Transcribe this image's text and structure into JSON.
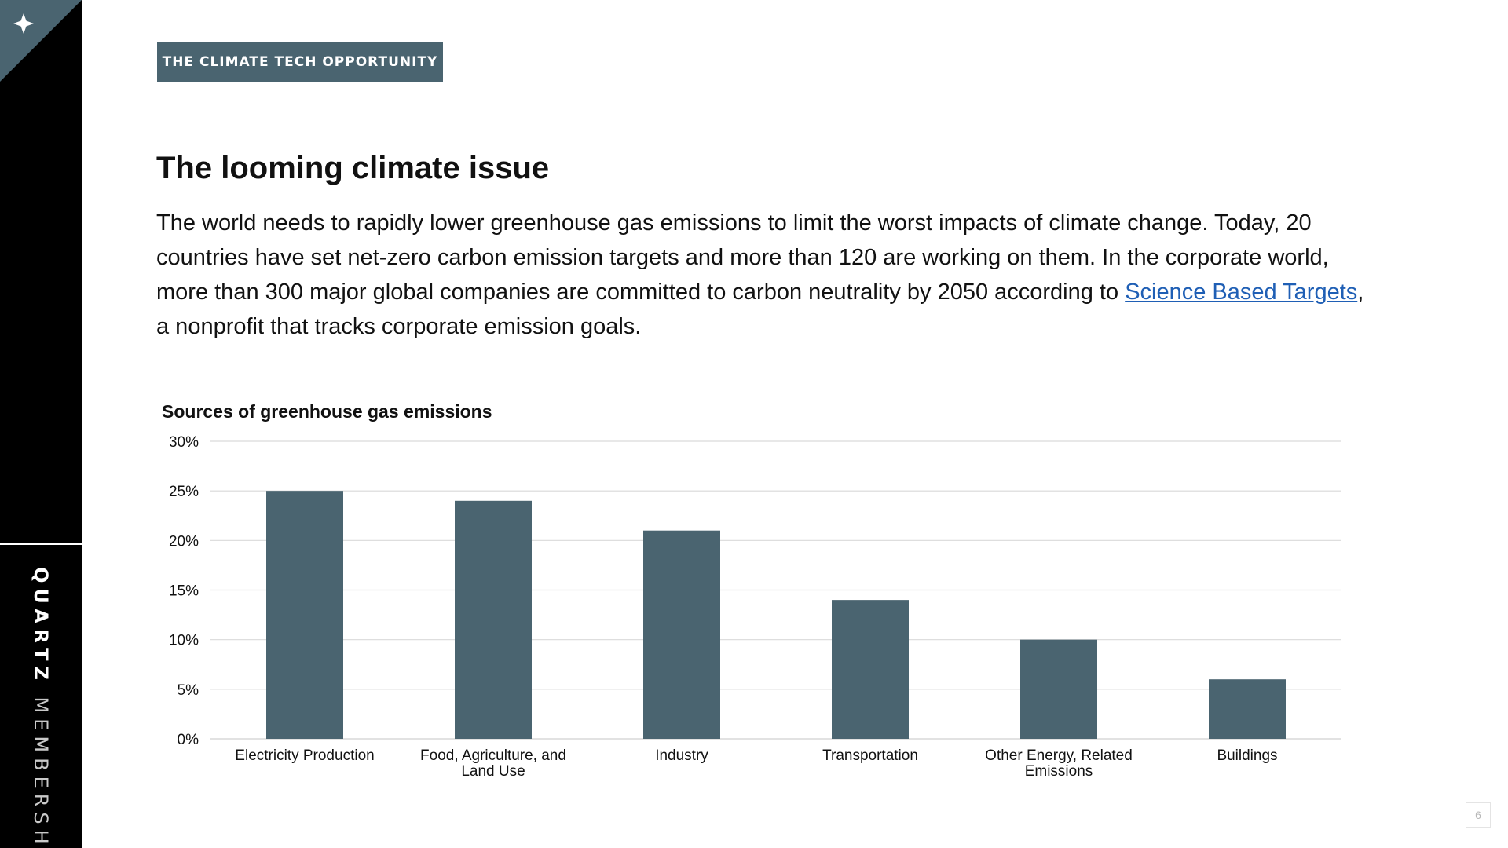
{
  "sidebar": {
    "brand_primary": "QUARTZ",
    "brand_secondary": "MEMBERSHIP",
    "logo_icon": "star-icon",
    "background_color": "#000000",
    "accent_color": "#4a6470"
  },
  "header": {
    "tag": "THE CLIMATE TECH OPPORTUNITY"
  },
  "main": {
    "title": "The looming climate issue",
    "paragraph_before_link": "The world needs to rapidly lower greenhouse gas emissions to limit the worst impacts of climate change. Today, 20 countries have set net-zero carbon emission targets and more than 120 are working on them. In the corporate world, more than 300 major global companies are committed to carbon neutrality by 2050 according to ",
    "link_text": "Science Based Targets",
    "paragraph_after_link": ", a nonprofit that tracks corporate emission goals."
  },
  "chart_data": {
    "type": "bar",
    "title": "Sources of greenhouse gas emissions",
    "xlabel": "",
    "ylabel": "",
    "categories": [
      "Electricity Production",
      "Food, Agriculture, and Land Use",
      "Industry",
      "Transportation",
      "Other Energy, Related Emissions",
      "Buildings"
    ],
    "category_label_lines": [
      [
        "Electricity Production"
      ],
      [
        "Food, Agriculture, and",
        "Land Use"
      ],
      [
        "Industry"
      ],
      [
        "Transportation"
      ],
      [
        "Other Energy, Related",
        "Emissions"
      ],
      [
        "Buildings"
      ]
    ],
    "values": [
      25,
      24,
      21,
      14,
      10,
      6
    ],
    "ylim": [
      0,
      30
    ],
    "y_ticks": [
      0,
      5,
      10,
      15,
      20,
      25,
      30
    ],
    "y_tick_labels": [
      "0%",
      "5%",
      "10%",
      "15%",
      "20%",
      "25%",
      "30%"
    ],
    "grid": true,
    "bar_color": "#4a6470",
    "grid_color": "#d9d9d9"
  },
  "footer": {
    "page_number": "6"
  }
}
